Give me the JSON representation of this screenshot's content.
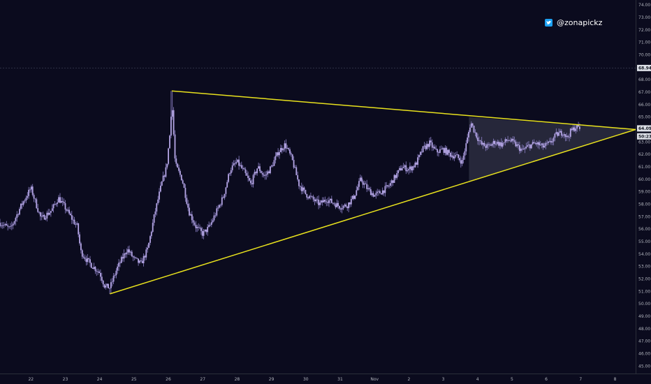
{
  "watermark": {
    "handle": "@zonapickz",
    "icon": "twitter-icon"
  },
  "colors": {
    "background": "#0b0b1e",
    "candle": "#b5a6e6",
    "wick": "#8e82c8",
    "trendline": "#e9e21d",
    "triangle_fill": "#2b2d40",
    "badge_bg": "#dde0e8",
    "badge_text": "#131722",
    "axis_text": "#b2b5be",
    "twitter_icon": "#1da1f2"
  },
  "chart_data": {
    "type": "candlestick",
    "title": "",
    "xlabel": "",
    "ylabel": "",
    "x_axis": {
      "min": 0.1,
      "max": 18.6,
      "ticks": [
        {
          "label": "22",
          "value": 1
        },
        {
          "label": "23",
          "value": 2
        },
        {
          "label": "24",
          "value": 3
        },
        {
          "label": "25",
          "value": 4
        },
        {
          "label": "26",
          "value": 5
        },
        {
          "label": "27",
          "value": 6
        },
        {
          "label": "28",
          "value": 7
        },
        {
          "label": "29",
          "value": 8
        },
        {
          "label": "30",
          "value": 9
        },
        {
          "label": "31",
          "value": 10
        },
        {
          "label": "Nov",
          "value": 11
        },
        {
          "label": "2",
          "value": 12
        },
        {
          "label": "3",
          "value": 13
        },
        {
          "label": "4",
          "value": 14
        },
        {
          "label": "5",
          "value": 15
        },
        {
          "label": "6",
          "value": 16
        },
        {
          "label": "7",
          "value": 17
        },
        {
          "label": "8",
          "value": 18
        }
      ]
    },
    "y_axis": {
      "min": 44.4,
      "max": 74.4,
      "ticks": [
        "45.00",
        "46.00",
        "47.00",
        "48.00",
        "49.00",
        "50.00",
        "51.00",
        "52.00",
        "53.00",
        "54.00",
        "55.00",
        "56.00",
        "57.00",
        "58.00",
        "59.00",
        "60.00",
        "61.00",
        "62.00",
        "63.00",
        "64.00",
        "65.00",
        "66.00",
        "67.00",
        "68.00",
        "69.00",
        "70.00",
        "71.00",
        "72.00",
        "73.00",
        "74.00"
      ],
      "hidden_ticks": [
        "64.00",
        "69.00"
      ]
    },
    "price_markers": [
      {
        "label": "68.94",
        "value": 68.94,
        "style": "horizontal-line"
      },
      {
        "label": "64.09",
        "value": 64.09,
        "style": "badge"
      },
      {
        "label": "50:23",
        "value": 63.45,
        "style": "badge"
      }
    ],
    "trendlines": [
      {
        "name": "upper",
        "points": [
          [
            5.1,
            67.1
          ],
          [
            18.6,
            64.0
          ]
        ]
      },
      {
        "name": "lower",
        "points": [
          [
            3.3,
            50.8
          ],
          [
            18.6,
            64.0
          ]
        ]
      }
    ],
    "highlight_triangle": [
      [
        13.75,
        65.0
      ],
      [
        13.75,
        59.8
      ],
      [
        18.6,
        64.0
      ]
    ],
    "price_path": [
      [
        0.1,
        56.5
      ],
      [
        0.4,
        56.0
      ],
      [
        0.7,
        57.8
      ],
      [
        0.9,
        58.8
      ],
      [
        1.0,
        59.3
      ],
      [
        1.15,
        58.0
      ],
      [
        1.3,
        56.8
      ],
      [
        1.6,
        57.5
      ],
      [
        1.8,
        58.5
      ],
      [
        2.0,
        57.7
      ],
      [
        2.2,
        56.8
      ],
      [
        2.35,
        56.2
      ],
      [
        2.45,
        54.2
      ],
      [
        2.6,
        53.6
      ],
      [
        2.8,
        53.0
      ],
      [
        3.0,
        52.5
      ],
      [
        3.15,
        51.4
      ],
      [
        3.3,
        51.3
      ],
      [
        3.5,
        52.8
      ],
      [
        3.65,
        53.6
      ],
      [
        3.8,
        54.4
      ],
      [
        4.0,
        53.6
      ],
      [
        4.2,
        53.2
      ],
      [
        4.4,
        54.4
      ],
      [
        4.6,
        57.2
      ],
      [
        4.8,
        59.6
      ],
      [
        4.95,
        61.0
      ],
      [
        5.05,
        63.8
      ],
      [
        5.1,
        66.4
      ],
      [
        5.2,
        61.2
      ],
      [
        5.4,
        60.0
      ],
      [
        5.6,
        57.4
      ],
      [
        5.8,
        56.2
      ],
      [
        6.0,
        55.6
      ],
      [
        6.2,
        56.2
      ],
      [
        6.4,
        57.4
      ],
      [
        6.6,
        58.6
      ],
      [
        6.8,
        60.8
      ],
      [
        7.0,
        61.4
      ],
      [
        7.2,
        60.6
      ],
      [
        7.4,
        59.6
      ],
      [
        7.6,
        61.0
      ],
      [
        7.8,
        60.2
      ],
      [
        8.0,
        61.0
      ],
      [
        8.2,
        62.2
      ],
      [
        8.4,
        62.8
      ],
      [
        8.6,
        61.6
      ],
      [
        8.8,
        59.6
      ],
      [
        9.0,
        58.8
      ],
      [
        9.2,
        58.4
      ],
      [
        9.4,
        58.0
      ],
      [
        9.6,
        58.4
      ],
      [
        9.8,
        58.1
      ],
      [
        10.0,
        57.8
      ],
      [
        10.2,
        57.9
      ],
      [
        10.4,
        58.6
      ],
      [
        10.6,
        60.0
      ],
      [
        10.8,
        59.2
      ],
      [
        11.0,
        58.7
      ],
      [
        11.2,
        59.0
      ],
      [
        11.4,
        59.4
      ],
      [
        11.6,
        60.2
      ],
      [
        11.8,
        61.0
      ],
      [
        12.0,
        60.8
      ],
      [
        12.2,
        61.2
      ],
      [
        12.4,
        62.4
      ],
      [
        12.6,
        62.9
      ],
      [
        12.8,
        62.2
      ],
      [
        13.0,
        62.4
      ],
      [
        13.2,
        62.0
      ],
      [
        13.4,
        61.8
      ],
      [
        13.55,
        61.4
      ],
      [
        13.7,
        63.2
      ],
      [
        13.8,
        64.6
      ],
      [
        13.95,
        63.6
      ],
      [
        14.1,
        62.8
      ],
      [
        14.3,
        62.6
      ],
      [
        14.5,
        63.0
      ],
      [
        14.7,
        62.8
      ],
      [
        14.9,
        63.2
      ],
      [
        15.1,
        62.8
      ],
      [
        15.3,
        62.3
      ],
      [
        15.5,
        62.7
      ],
      [
        15.7,
        62.9
      ],
      [
        15.9,
        62.6
      ],
      [
        16.1,
        62.9
      ],
      [
        16.3,
        63.6
      ],
      [
        16.5,
        63.8
      ],
      [
        16.6,
        63.3
      ],
      [
        16.7,
        63.8
      ],
      [
        16.85,
        64.2
      ],
      [
        17.0,
        64.1
      ]
    ],
    "grid": false,
    "legend": "none"
  }
}
